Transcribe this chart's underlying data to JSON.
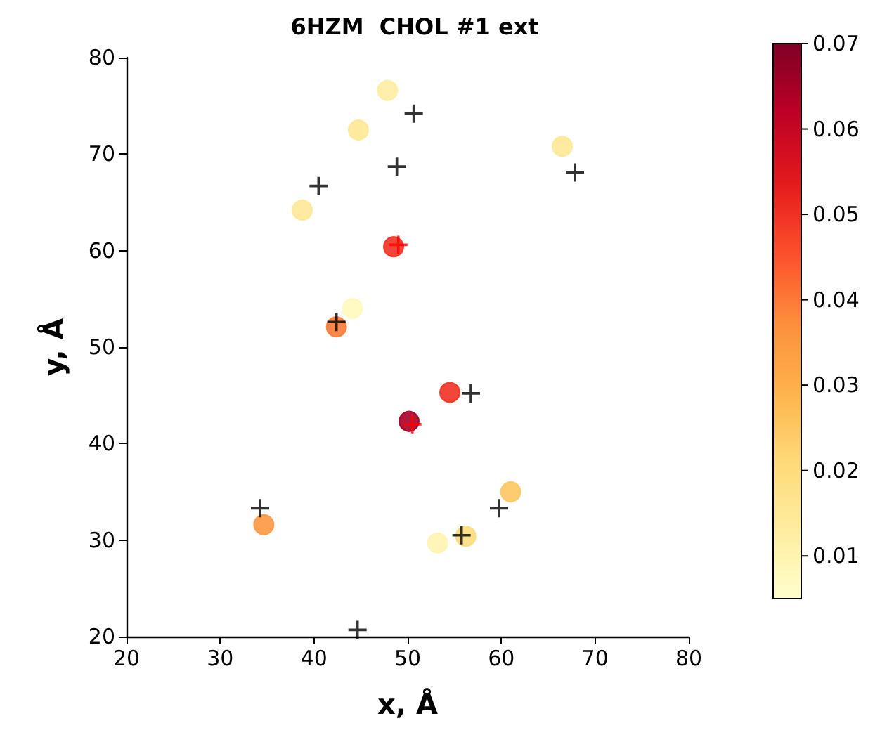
{
  "chart_data": {
    "type": "scatter",
    "title": "6HZM  CHOL #1 ext",
    "xlabel": "x, Å",
    "ylabel": "y, Å",
    "xlim": [
      20,
      80
    ],
    "ylim": [
      20,
      80
    ],
    "xticks": [
      20,
      30,
      40,
      50,
      60,
      70,
      80
    ],
    "yticks": [
      20,
      30,
      40,
      50,
      60,
      70,
      80
    ],
    "clim": [
      0.005,
      0.07
    ],
    "cticks": [
      0.01,
      0.02,
      0.03,
      0.04,
      0.05,
      0.06,
      0.07
    ],
    "grid": false,
    "series": [
      {
        "marker": "circle",
        "x": [
          47.85,
          44.75,
          38.75,
          66.5,
          48.5,
          42.4,
          44.1,
          54.5,
          50.15,
          34.65,
          61,
          56.2,
          53.2
        ],
        "values": [
          76.6,
          72.5,
          64.2,
          70.8,
          60.4,
          52.1,
          54,
          45.3,
          42.3,
          31.6,
          35,
          30.4,
          29.7
        ],
        "colors": [
          "#ffeda1",
          "#ffe896",
          "#ffe896",
          "#ffe896",
          "#ef3222",
          "#fd7a37",
          "#fff8bc",
          "#ef3222",
          "#a60026",
          "#fd9841",
          "#fec761",
          "#fedc7d",
          "#fff4b1"
        ],
        "cvalues": [
          0.013,
          0.015,
          0.015,
          0.015,
          0.05,
          0.04,
          0.008,
          0.05,
          0.065,
          0.035,
          0.025,
          0.02,
          0.01
        ]
      },
      {
        "marker": "cross",
        "color": "#000000",
        "x": [
          50.65,
          48.85,
          40.5,
          67.85,
          42.4,
          56.75,
          34.25,
          59.75,
          55.75,
          44.65
        ],
        "values": [
          74.2,
          68.7,
          66.7,
          68.1,
          52.6,
          45.2,
          33.3,
          33.3,
          30.5,
          20.7
        ]
      },
      {
        "marker": "cross",
        "color": "#ff0000",
        "x": [
          49,
          50.5
        ],
        "values": [
          60.6,
          42
        ]
      }
    ]
  }
}
